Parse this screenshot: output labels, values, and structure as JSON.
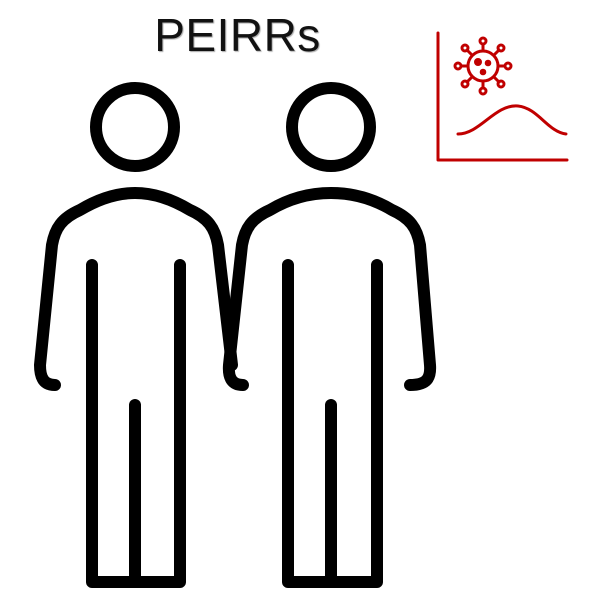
{
  "title": "PEIRRs",
  "colors": {
    "figure_stroke": "#000000",
    "accent": "#c00000",
    "background": "#ffffff"
  },
  "icons": {
    "people": "two-person-outline-icon",
    "epidemic": "virus-epidemic-curve-icon"
  }
}
